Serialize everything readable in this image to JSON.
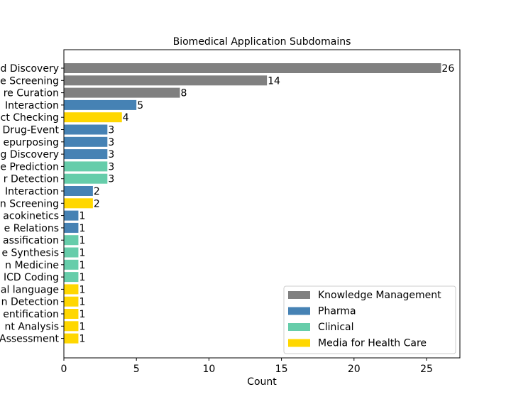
{
  "chart_data": {
    "type": "bar",
    "orientation": "horizontal",
    "title": "Biomedical Application Subdomains",
    "xlabel": "Count",
    "ylabel": "",
    "xlim": [
      0,
      27.3
    ],
    "xticks": [
      0,
      5,
      10,
      15,
      20,
      25
    ],
    "grid": false,
    "legend_position": "lower-right",
    "groups": [
      {
        "name": "Knowledge Management",
        "color": "#808080"
      },
      {
        "name": "Pharma",
        "color": "#4682b4"
      },
      {
        "name": "Clinical",
        "color": "#66cdaa"
      },
      {
        "name": "Media for Health Care",
        "color": "#ffd700"
      }
    ],
    "categories": [
      "d Discovery",
      "e Screening",
      "re Curation",
      "Interaction",
      "ct Checking",
      "Drug-Event",
      "epurposing",
      "g Discovery",
      "e Prediction",
      "r Detection",
      "Interaction",
      "n Screening",
      "acokinetics",
      "e Relations",
      "assification",
      "e Synthesis",
      "n Medicine",
      "ICD Coding",
      "al language",
      "n Detection",
      "entification",
      "nt Analysis",
      "Assessment"
    ],
    "values": [
      26,
      14,
      8,
      5,
      4,
      3,
      3,
      3,
      3,
      3,
      2,
      2,
      1,
      1,
      1,
      1,
      1,
      1,
      1,
      1,
      1,
      1,
      1
    ],
    "bar_groups": [
      "Knowledge Management",
      "Knowledge Management",
      "Knowledge Management",
      "Pharma",
      "Media for Health Care",
      "Pharma",
      "Pharma",
      "Pharma",
      "Clinical",
      "Clinical",
      "Pharma",
      "Media for Health Care",
      "Pharma",
      "Pharma",
      "Clinical",
      "Clinical",
      "Clinical",
      "Clinical",
      "Media for Health Care",
      "Media for Health Care",
      "Media for Health Care",
      "Media for Health Care",
      "Media for Health Care"
    ]
  }
}
